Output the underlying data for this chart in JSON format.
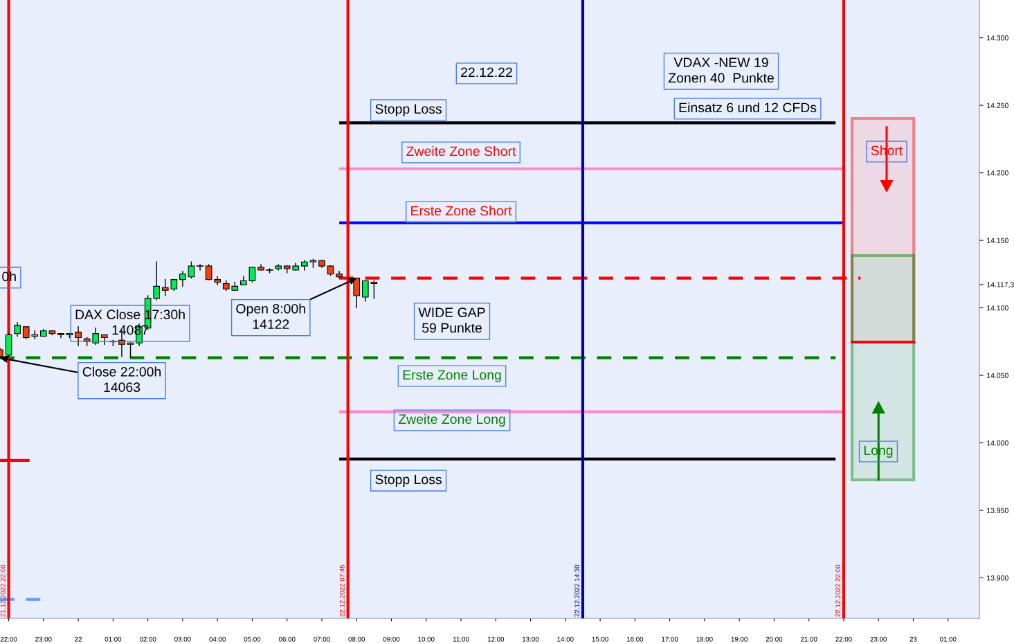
{
  "chart_data": {
    "type": "candlestick",
    "x": [
      "2022-12-21T21:45",
      "2022-12-21T22:00",
      "2022-12-21T22:15",
      "2022-12-21T22:30",
      "2022-12-21T22:45",
      "2022-12-21T23:00",
      "2022-12-21T23:15",
      "2022-12-21T23:30",
      "2022-12-21T23:45",
      "2022-12-22T00:00",
      "2022-12-22T00:15",
      "2022-12-22T00:30",
      "2022-12-22T00:45",
      "2022-12-22T01:00",
      "2022-12-22T01:15",
      "2022-12-22T01:30",
      "2022-12-22T01:45",
      "2022-12-22T02:00",
      "2022-12-22T02:15",
      "2022-12-22T02:30",
      "2022-12-22T02:45",
      "2022-12-22T03:00",
      "2022-12-22T03:15",
      "2022-12-22T03:30",
      "2022-12-22T03:45",
      "2022-12-22T04:00",
      "2022-12-22T04:15",
      "2022-12-22T04:30",
      "2022-12-22T04:45",
      "2022-12-22T05:00",
      "2022-12-22T05:15",
      "2022-12-22T05:30",
      "2022-12-22T05:45",
      "2022-12-22T06:00",
      "2022-12-22T06:15",
      "2022-12-22T06:30",
      "2022-12-22T06:45",
      "2022-12-22T07:00",
      "2022-12-22T07:15",
      "2022-12-22T07:30",
      "2022-12-22T08:00",
      "2022-12-22T08:15",
      "2022-12-22T08:30"
    ],
    "ohlc": [
      [
        14069,
        14070,
        14063,
        14064
      ],
      [
        14065,
        14081,
        14064,
        14080
      ],
      [
        14081,
        14089,
        14079,
        14087
      ],
      [
        14086,
        14086,
        14077,
        14078
      ],
      [
        14079,
        14083,
        14077,
        14080
      ],
      [
        14079,
        14084,
        14079,
        14083
      ],
      [
        14083,
        14083,
        14080,
        14081
      ],
      [
        14081,
        14081,
        14078,
        14080
      ],
      [
        14080,
        14081,
        14078,
        14081
      ],
      [
        14082,
        14086,
        14072,
        14078
      ],
      [
        14077,
        14078,
        14072,
        14075
      ],
      [
        14074,
        14085,
        14073,
        14081
      ],
      [
        14080,
        14080,
        14073,
        14078
      ],
      [
        14075,
        14076,
        14072,
        14075
      ],
      [
        14076,
        14083,
        14064,
        14073
      ],
      [
        14073,
        14074,
        14064,
        14074
      ],
      [
        14074,
        14088,
        14072,
        14086
      ],
      [
        14085,
        14109,
        14084,
        14107
      ],
      [
        14107,
        14134,
        14106,
        14116
      ],
      [
        14115,
        14121,
        14109,
        14113
      ],
      [
        14114,
        14121,
        14113,
        14121
      ],
      [
        14121,
        14127,
        14116,
        14125
      ],
      [
        14123,
        14134,
        14122,
        14131
      ],
      [
        14131,
        14132,
        14128,
        14131
      ],
      [
        14131,
        14132,
        14121,
        14121
      ],
      [
        14121,
        14123,
        14117,
        14119
      ],
      [
        14118,
        14120,
        14113,
        14114
      ],
      [
        14113,
        14119,
        14113,
        14116
      ],
      [
        14117,
        14123,
        14117,
        14120
      ],
      [
        14120,
        14130,
        14119,
        14130
      ],
      [
        14130,
        14132,
        14128,
        14128
      ],
      [
        14128,
        14129,
        14126,
        14128
      ],
      [
        14129,
        14132,
        14128,
        14131
      ],
      [
        14131,
        14131,
        14126,
        14129
      ],
      [
        14128,
        14133,
        14128,
        14131
      ],
      [
        14131,
        14135,
        14128,
        14134
      ],
      [
        14134,
        14136,
        14130,
        14135
      ],
      [
        14135,
        14135,
        14130,
        14131
      ],
      [
        14131,
        14131,
        14124,
        14125
      ],
      [
        14125,
        14127,
        14122,
        14123
      ],
      [
        14122,
        14122,
        14100,
        14109
      ],
      [
        14108,
        14120,
        14105,
        14120
      ],
      [
        14119,
        14120,
        14107,
        14118
      ]
    ],
    "colors": [
      "#ee4411",
      "#00ee55",
      "#00ee55",
      "#ee4411",
      "#00ee55",
      "#00ee55",
      "#ee4411",
      "#ee4411",
      "#00ee55",
      "#ee4411",
      "#ee4411",
      "#00ee55",
      "#ee4411",
      "#000000",
      "#ee4411",
      "#00ee55",
      "#00ee55",
      "#00ee55",
      "#00ee55",
      "#ee4411",
      "#00ee55",
      "#00ee55",
      "#00ee55",
      "#000000",
      "#ee4411",
      "#ee4411",
      "#ee4411",
      "#00ee55",
      "#00ee55",
      "#00ee55",
      "#ee4411",
      "#000000",
      "#00ee55",
      "#ee4411",
      "#00ee55",
      "#00ee55",
      "#00ee55",
      "#ee4411",
      "#ee4411",
      "#ee4411",
      "#ee4411",
      "#00ee55",
      "#ee4411"
    ],
    "series": [
      {
        "type": "line",
        "x": [
          "2022-12-22T07:30",
          "2022-12-22T21:46"
        ],
        "values": [
          14237,
          14237
        ],
        "color": "#000000",
        "line_style": "solid"
      },
      {
        "type": "line",
        "x": [
          "2022-12-22T07:30",
          "2022-12-22T22:00"
        ],
        "values": [
          14203,
          14203
        ],
        "color": "#ff88cc",
        "line_style": "solid"
      },
      {
        "type": "line",
        "x": [
          "2022-12-22T07:30",
          "2022-12-22T22:00"
        ],
        "values": [
          14163,
          14163
        ],
        "color": "#0000ff",
        "line_style": "solid"
      },
      {
        "type": "line",
        "x": [
          "2022-12-22T07:30",
          "2022-12-22T22:29"
        ],
        "values": [
          14122,
          14122
        ],
        "color": "#ff0000",
        "line_style": "dashed"
      },
      {
        "type": "line",
        "x": [
          "2022-12-21T21:45",
          "2022-12-22T21:46"
        ],
        "values": [
          14063,
          14063
        ],
        "color": "#008000",
        "line_style": "dashed"
      },
      {
        "type": "line",
        "x": [
          "2022-12-22T07:30",
          "2022-12-22T22:00"
        ],
        "values": [
          14023,
          14023
        ],
        "color": "#ff88cc",
        "line_style": "solid"
      },
      {
        "type": "line",
        "x": [
          "2022-12-22T07:30",
          "2022-12-22T21:46"
        ],
        "values": [
          13988,
          13988
        ],
        "color": "#000000",
        "line_style": "solid"
      },
      {
        "type": "line",
        "x": [
          "2022-12-21T21:45",
          "2022-12-21T22:36"
        ],
        "values": [
          13987,
          13987
        ],
        "color": "#ff0000",
        "line_style": "solid"
      },
      {
        "type": "line",
        "x": [
          "2022-12-21T21:45",
          "2022-12-21T23:00"
        ],
        "values": [
          13884,
          13884
        ],
        "color": "#6699ff",
        "line_style": "dashed"
      }
    ],
    "ref_lines": [
      {
        "axis": "x",
        "value": "2022-12-21T22:00",
        "label": "21.12.2022 22:00",
        "color": "#ff0000"
      },
      {
        "axis": "x",
        "value": "2022-12-22T07:45",
        "label": "22.12.2022 07:45",
        "color": "#ff0000"
      },
      {
        "axis": "x",
        "value": "2022-12-22T14:30",
        "label": "22.12.2022 14:30",
        "color": "#0000aa"
      },
      {
        "axis": "x",
        "value": "2022-12-22T22:00",
        "label": "22.12.2022 22:00",
        "color": "#ff0000"
      }
    ],
    "annotations": [
      "22.12.22",
      "VDAX -NEW 19\nZonen 40  Punkte",
      "Einsatz 6 und 12 CFDs",
      "Stopp Loss",
      "Zweite Zone Short",
      "Erste Zone Short",
      {
        "text": "Open 8:00h\n14122",
        "x": "2022-12-22T08:00",
        "y": 14122
      },
      "0h",
      "DAX Close 17:30h\n14087",
      {
        "text": "Close 22:00h\n14063",
        "x": "2022-12-21T21:45",
        "y": 14063
      },
      "WIDE GAP\n59 Punkte",
      "Erste Zone Long",
      "Zweite Zone Long",
      "Stopp Loss",
      "Short",
      "Long"
    ],
    "xlim": [
      "2022-12-21T21:45",
      "2022-12-23T01:54"
    ],
    "ylim": [
      13870,
      14328
    ],
    "xticks": [
      {
        "value": "2022-12-21T22:00",
        "label": "22:00"
      },
      {
        "value": "2022-12-21T23:00",
        "label": "23:00"
      },
      {
        "value": "2022-12-22T00:00",
        "label": "22"
      },
      {
        "value": "2022-12-22T01:00",
        "label": "01:00"
      },
      {
        "value": "2022-12-22T02:00",
        "label": "02:00"
      },
      {
        "value": "2022-12-22T03:00",
        "label": "03:00"
      },
      {
        "value": "2022-12-22T04:00",
        "label": "04:00"
      },
      {
        "value": "2022-12-22T05:00",
        "label": "05:00"
      },
      {
        "value": "2022-12-22T06:00",
        "label": "06:00"
      },
      {
        "value": "2022-12-22T07:00",
        "label": "07:00"
      },
      {
        "value": "2022-12-22T08:00",
        "label": "08:00"
      },
      {
        "value": "2022-12-22T09:00",
        "label": "09:00"
      },
      {
        "value": "2022-12-22T10:00",
        "label": "10:00"
      },
      {
        "value": "2022-12-22T11:00",
        "label": "11:00"
      },
      {
        "value": "2022-12-22T12:00",
        "label": "12:00"
      },
      {
        "value": "2022-12-22T13:00",
        "label": "13:00"
      },
      {
        "value": "2022-12-22T14:00",
        "label": "14:00"
      },
      {
        "value": "2022-12-22T15:00",
        "label": "15:00"
      },
      {
        "value": "2022-12-22T16:00",
        "label": "16:00"
      },
      {
        "value": "2022-12-22T17:00",
        "label": "17:00"
      },
      {
        "value": "2022-12-22T18:00",
        "label": "18:00"
      },
      {
        "value": "2022-12-22T19:00",
        "label": "19:00"
      },
      {
        "value": "2022-12-22T20:00",
        "label": "20:00"
      },
      {
        "value": "2022-12-22T21:00",
        "label": "21:00"
      },
      {
        "value": "2022-12-22T22:00",
        "label": "22:00"
      },
      {
        "value": "2022-12-22T23:00",
        "label": "23:00"
      },
      {
        "value": "2022-12-23T00:00",
        "label": "23"
      },
      {
        "value": "2022-12-23T01:00",
        "label": "01:00"
      }
    ],
    "yticks": [
      {
        "value": 13900,
        "label": "13.900"
      },
      {
        "value": 13950,
        "label": "13.950"
      },
      {
        "value": 14000,
        "label": "14.000"
      },
      {
        "value": 14050,
        "label": "14.050"
      },
      {
        "value": 14100,
        "label": "14.100"
      },
      {
        "value": 14117.3,
        "label": "14.117,3"
      },
      {
        "value": 14150,
        "label": "14.150"
      },
      {
        "value": 14200,
        "label": "14.200"
      },
      {
        "value": 14250,
        "label": "14.250"
      },
      {
        "value": 14300,
        "label": "14.300"
      }
    ],
    "grid": false
  }
}
